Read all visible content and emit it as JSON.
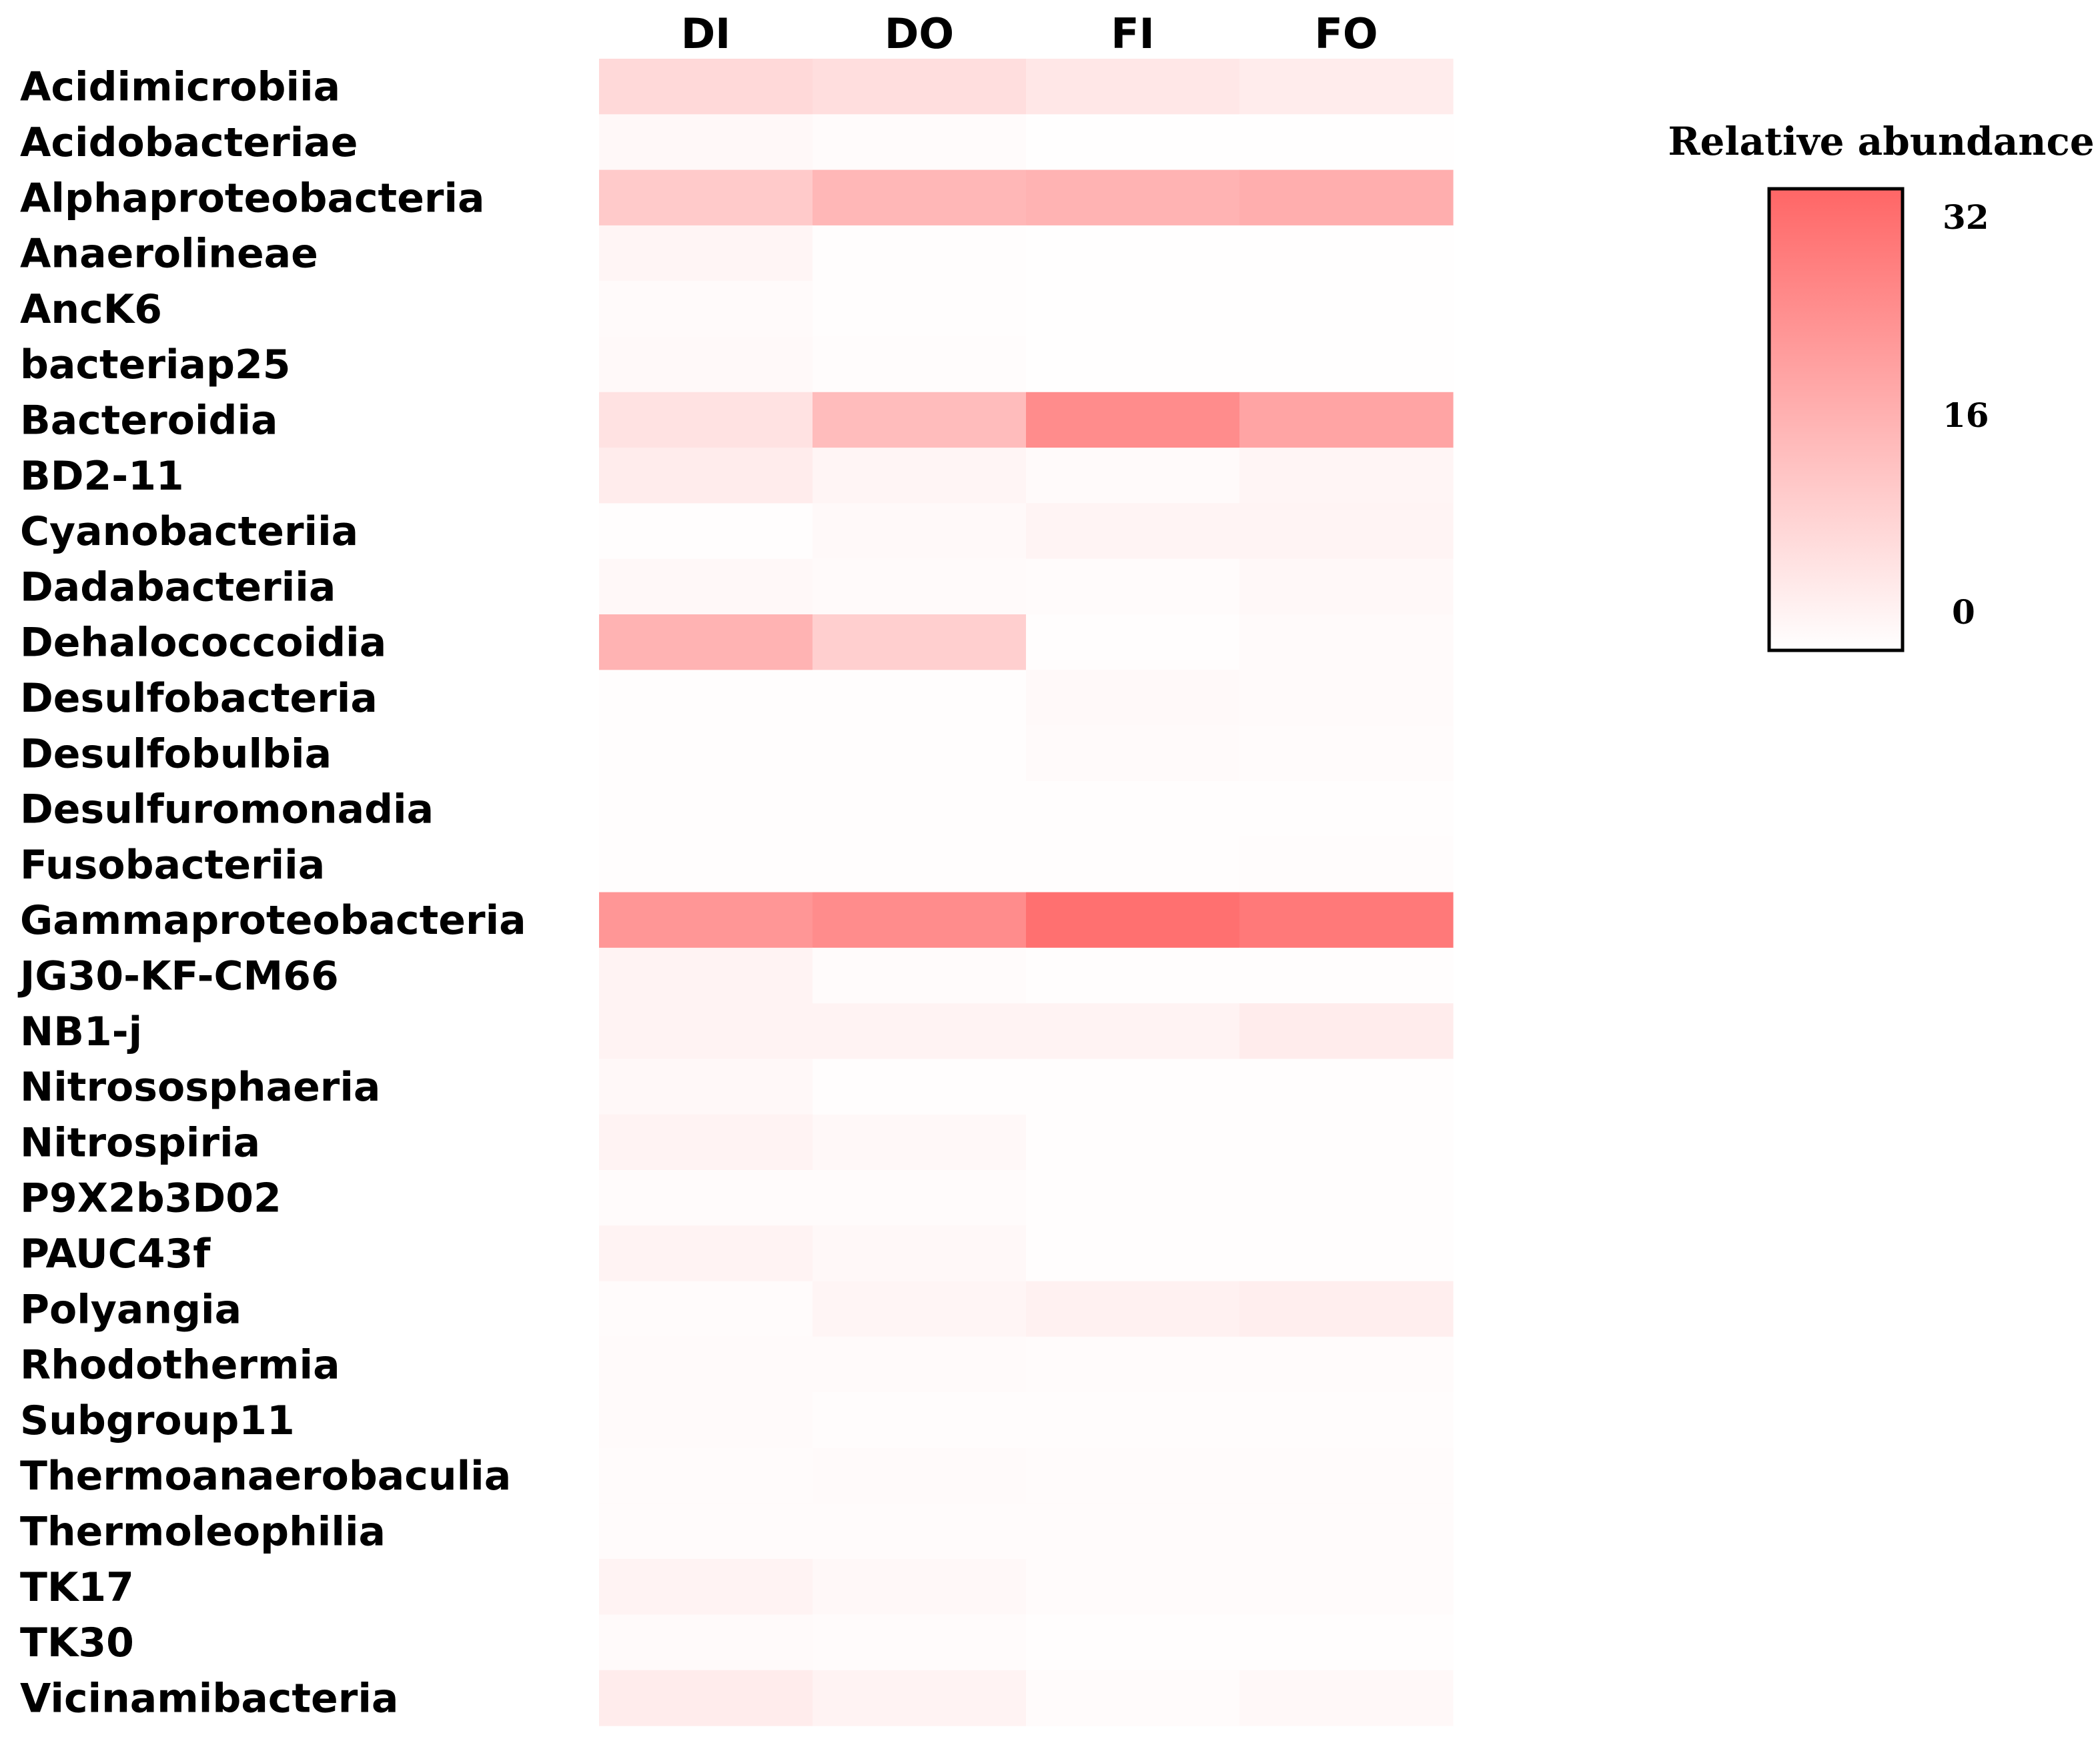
{
  "chart_data": {
    "type": "heatmap",
    "columns": [
      "DI",
      "DO",
      "FI",
      "FO"
    ],
    "rows": [
      "Acidimicrobiia",
      "Acidobacteriae",
      "Alphaproteobacteria",
      "Anaerolineae",
      "AncK6",
      "bacteriap25",
      "Bacteroidia",
      "BD2-11",
      "Cyanobacteriia",
      "Dadabacteriia",
      "Dehalococcoidia",
      "Desulfobacteria",
      "Desulfobulbia",
      "Desulfuromonadia",
      "Fusobacteriia",
      "Gammaproteobacteria",
      "JG30-KF-CM66",
      "NB1-j",
      "Nitrososphaeria",
      "Nitrospiria",
      "P9X2b3D02",
      "PAUC43f",
      "Polyangia",
      "Rhodothermia",
      "Subgroup11",
      "Thermoanaerobaculia",
      "Thermoleophilia",
      "TK17",
      "TK30",
      "Vicinamibacteria"
    ],
    "values": [
      [
        8,
        7,
        5,
        4
      ],
      [
        1.5,
        0.8,
        0.3,
        0.3
      ],
      [
        11,
        15,
        16,
        17
      ],
      [
        2,
        0.5,
        0.3,
        0.3
      ],
      [
        1,
        0.5,
        0.3,
        0.3
      ],
      [
        1.2,
        0.6,
        0.3,
        0.3
      ],
      [
        6,
        14,
        24,
        19
      ],
      [
        4,
        2,
        1,
        2
      ],
      [
        0.5,
        1.2,
        2.2,
        2.2
      ],
      [
        1.5,
        1,
        0.8,
        1.5
      ],
      [
        16,
        10,
        0.5,
        1
      ],
      [
        0.5,
        0.5,
        1.2,
        1
      ],
      [
        0.5,
        0.5,
        1,
        0.8
      ],
      [
        0.5,
        0.5,
        0.5,
        0.5
      ],
      [
        0.5,
        0.5,
        0.5,
        0.6
      ],
      [
        22,
        24,
        30,
        28
      ],
      [
        2.5,
        0.8,
        0.5,
        0.5
      ],
      [
        2.5,
        2.5,
        2.5,
        4
      ],
      [
        1.5,
        0.5,
        0.4,
        0.4
      ],
      [
        2.5,
        1.5,
        0.5,
        0.5
      ],
      [
        0.8,
        0.8,
        0.5,
        0.5
      ],
      [
        2.5,
        1.5,
        0.5,
        0.5
      ],
      [
        0.8,
        2,
        3,
        3.5
      ],
      [
        1,
        1,
        0.8,
        0.8
      ],
      [
        1,
        0.6,
        0.6,
        0.6
      ],
      [
        0.8,
        1,
        0.8,
        0.8
      ],
      [
        0.8,
        0.8,
        0.8,
        0.8
      ],
      [
        2.5,
        1.5,
        0.8,
        0.8
      ],
      [
        1,
        0.8,
        0.5,
        0.5
      ],
      [
        4,
        2.5,
        0.8,
        1.5
      ]
    ],
    "colorscale": {
      "min": 0,
      "max": 32,
      "low_color": "#ffffff",
      "high_color": "#ff6666"
    },
    "legend": {
      "title": "Relative abundance",
      "ticks": [
        "32",
        "16",
        "0"
      ],
      "placement": "top-right"
    }
  }
}
